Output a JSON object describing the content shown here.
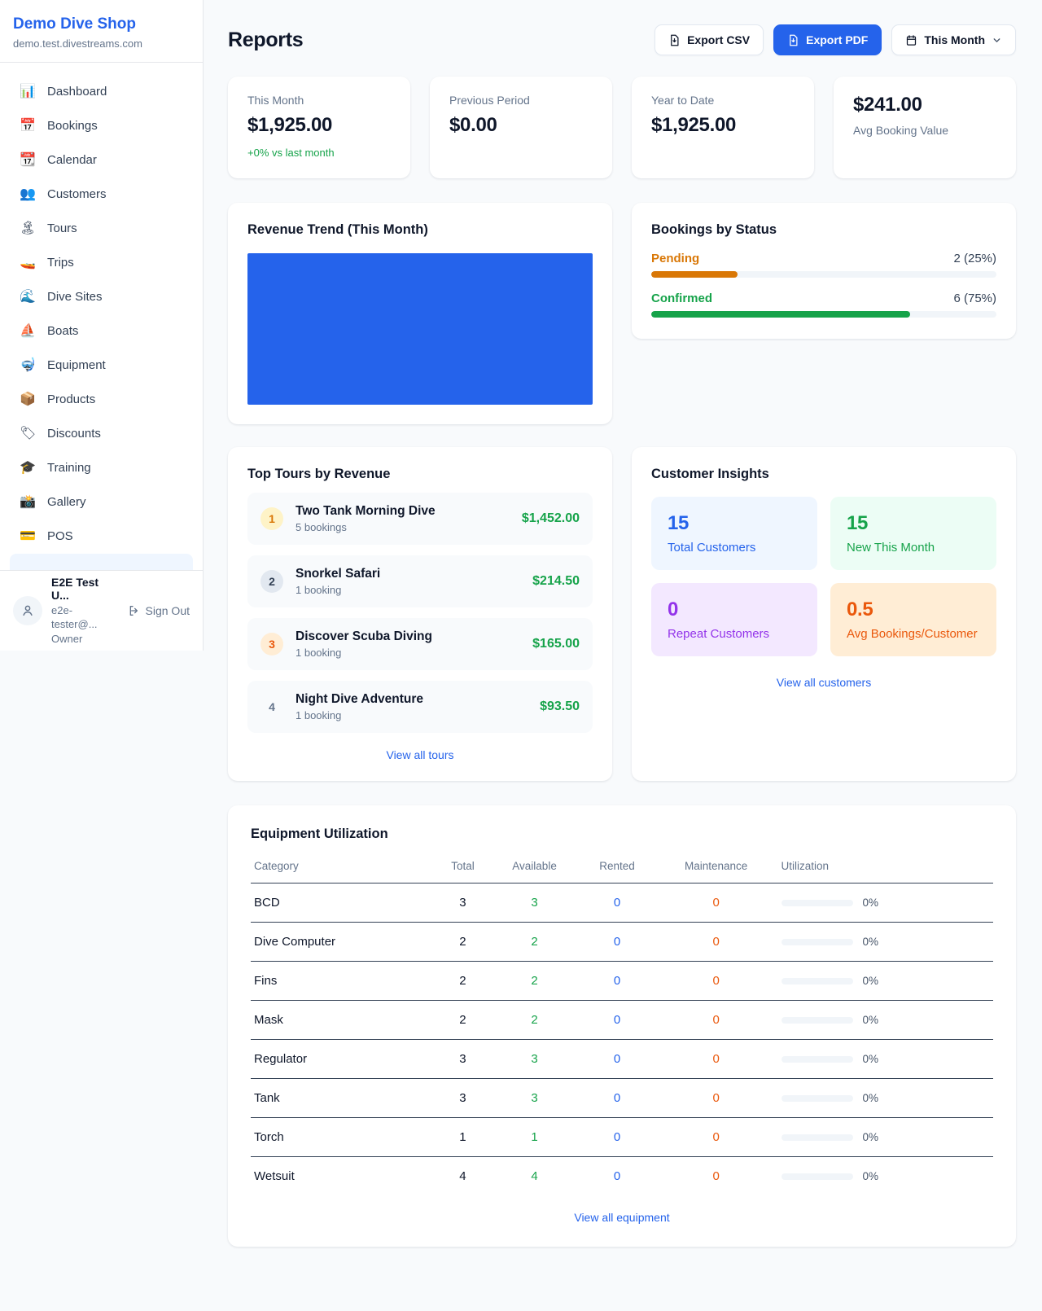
{
  "colors": {
    "accent": "#2563eb",
    "green": "#16a34a",
    "orange": "#d97706",
    "deep_orange": "#ea580c",
    "purple": "#9333ea",
    "chart_fill": "#2563eb"
  },
  "sidebar": {
    "shop_name": "Demo Dive Shop",
    "shop_domain": "demo.test.divestreams.com",
    "items": [
      {
        "icon": "📊",
        "icon_name": "bar-chart-icon",
        "label": "Dashboard"
      },
      {
        "icon": "📅",
        "icon_name": "calendar-date-icon",
        "label": "Bookings"
      },
      {
        "icon": "📆",
        "icon_name": "tear-off-calendar-icon",
        "label": "Calendar"
      },
      {
        "icon": "👥",
        "icon_name": "people-icon",
        "label": "Customers"
      },
      {
        "icon": "🏝",
        "icon_name": "island-icon",
        "label": "Tours"
      },
      {
        "icon": "🚤",
        "icon_name": "speedboat-icon",
        "label": "Trips"
      },
      {
        "icon": "🌊",
        "icon_name": "wave-icon",
        "label": "Dive Sites"
      },
      {
        "icon": "⛵",
        "icon_name": "sailboat-icon",
        "label": "Boats"
      },
      {
        "icon": "🤿",
        "icon_name": "diving-mask-icon",
        "label": "Equipment"
      },
      {
        "icon": "📦",
        "icon_name": "package-icon",
        "label": "Products"
      },
      {
        "icon": "🏷",
        "icon_name": "tag-icon",
        "label": "Discounts"
      },
      {
        "icon": "🎓",
        "icon_name": "graduation-cap-icon",
        "label": "Training"
      },
      {
        "icon": "📸",
        "icon_name": "camera-icon",
        "label": "Gallery"
      },
      {
        "icon": "💳",
        "icon_name": "credit-card-icon",
        "label": "POS"
      }
    ],
    "user": {
      "name": "E2E Test U...",
      "email": "e2e-tester@...",
      "role": "Owner",
      "sign_out_label": "Sign Out"
    }
  },
  "header": {
    "title": "Reports",
    "export_csv_label": "Export CSV",
    "export_pdf_label": "Export PDF",
    "period_label": "This Month"
  },
  "stats": [
    {
      "label": "This Month",
      "value": "$1,925.00",
      "delta": "+0% vs last month"
    },
    {
      "label": "Previous Period",
      "value": "$0.00"
    },
    {
      "label": "Year to Date",
      "value": "$1,925.00"
    },
    {
      "label": "Avg Booking Value",
      "value": "$241.00",
      "value_first": true
    }
  ],
  "revenue_trend": {
    "title": "Revenue Trend (This Month)"
  },
  "chart_data": {
    "type": "area",
    "title": "Revenue Trend (This Month)",
    "depiction": "plot area rendered as a single solid filled block, no visible axes or labels",
    "fill_color": "#2563eb"
  },
  "bookings_by_status": {
    "title": "Bookings by Status",
    "rows": [
      {
        "label": "Pending",
        "count_text": "2 (25%)",
        "count": 2,
        "pct": 25,
        "color": "#d97706"
      },
      {
        "label": "Confirmed",
        "count_text": "6 (75%)",
        "count": 6,
        "pct": 75,
        "color": "#16a34a"
      }
    ]
  },
  "top_tours": {
    "title": "Top Tours by Revenue",
    "rows": [
      {
        "rank": 1,
        "name": "Two Tank Morning Dive",
        "bookings": "5 bookings",
        "revenue": "$1,452.00"
      },
      {
        "rank": 2,
        "name": "Snorkel Safari",
        "bookings": "1 booking",
        "revenue": "$214.50"
      },
      {
        "rank": 3,
        "name": "Discover Scuba Diving",
        "bookings": "1 booking",
        "revenue": "$165.00"
      },
      {
        "rank": 4,
        "name": "Night Dive Adventure",
        "bookings": "1 booking",
        "revenue": "$93.50"
      }
    ],
    "view_all_label": "View all tours"
  },
  "customer_insights": {
    "title": "Customer Insights",
    "tiles": [
      {
        "value": "15",
        "label": "Total Customers",
        "bg": "#eff6ff",
        "fg": "#2563eb"
      },
      {
        "value": "15",
        "label": "New This Month",
        "bg": "#ecfdf5",
        "fg": "#16a34a"
      },
      {
        "value": "0",
        "label": "Repeat Customers",
        "bg": "#f3e8ff",
        "fg": "#9333ea"
      },
      {
        "value": "0.5",
        "label": "Avg Bookings/Customer",
        "bg": "#ffedd5",
        "fg": "#ea580c"
      }
    ],
    "view_all_label": "View all customers"
  },
  "equipment": {
    "title": "Equipment Utilization",
    "columns": [
      "Category",
      "Total",
      "Available",
      "Rented",
      "Maintenance",
      "Utilization"
    ],
    "rows": [
      {
        "category": "BCD",
        "total": 3,
        "available": 3,
        "rented": 0,
        "maintenance": 0,
        "utilization_pct": 0,
        "utilization_text": "0%"
      },
      {
        "category": "Dive Computer",
        "total": 2,
        "available": 2,
        "rented": 0,
        "maintenance": 0,
        "utilization_pct": 0,
        "utilization_text": "0%"
      },
      {
        "category": "Fins",
        "total": 2,
        "available": 2,
        "rented": 0,
        "maintenance": 0,
        "utilization_pct": 0,
        "utilization_text": "0%"
      },
      {
        "category": "Mask",
        "total": 2,
        "available": 2,
        "rented": 0,
        "maintenance": 0,
        "utilization_pct": 0,
        "utilization_text": "0%"
      },
      {
        "category": "Regulator",
        "total": 3,
        "available": 3,
        "rented": 0,
        "maintenance": 0,
        "utilization_pct": 0,
        "utilization_text": "0%"
      },
      {
        "category": "Tank",
        "total": 3,
        "available": 3,
        "rented": 0,
        "maintenance": 0,
        "utilization_pct": 0,
        "utilization_text": "0%"
      },
      {
        "category": "Torch",
        "total": 1,
        "available": 1,
        "rented": 0,
        "maintenance": 0,
        "utilization_pct": 0,
        "utilization_text": "0%"
      },
      {
        "category": "Wetsuit",
        "total": 4,
        "available": 4,
        "rented": 0,
        "maintenance": 0,
        "utilization_pct": 0,
        "utilization_text": "0%"
      }
    ],
    "view_all_label": "View all equipment"
  }
}
